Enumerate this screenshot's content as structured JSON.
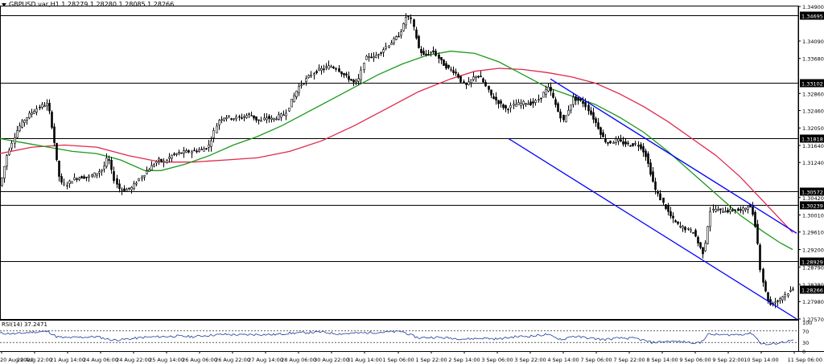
{
  "header": {
    "symbol_line": "GBPUSD.var,H1 1.28279 1.28280 1.28085 1.28266"
  },
  "rsi": {
    "label": "RSI(14) 37.2471",
    "levels": [
      "100",
      "70",
      "30",
      "0"
    ]
  },
  "colors": {
    "candle": "#000000",
    "ma_fast": "#1a9a1a",
    "ma_slow": "#e0294b",
    "channel": "#0000ff",
    "level_line": "#000000",
    "rsi_line": "#1e3c9a"
  },
  "chart_data": {
    "type": "candlestick",
    "symbol": "GBPUSD.var",
    "timeframe": "H1",
    "ohlc_last": {
      "open": 1.28279,
      "high": 1.2828,
      "low": 1.28085,
      "close": 1.28266
    },
    "ylim": [
      1.2757,
      1.349
    ],
    "y_ticks": [
      "1.34900",
      "1.34090",
      "1.33680",
      "1.32860",
      "1.32460",
      "1.32050",
      "1.31640",
      "1.31240",
      "1.30420",
      "1.30010",
      "1.29610",
      "1.29200",
      "1.28790",
      "1.28380",
      "1.27980",
      "1.27570"
    ],
    "x_ticks": [
      "20 Aug 2020",
      "20 Aug 22:00",
      "21 Aug 14:00",
      "24 Aug 06:00",
      "24 Aug 22:00",
      "25 Aug 14:00",
      "26 Aug 06:00",
      "26 Aug 22:00",
      "27 Aug 14:00",
      "28 Aug 06:00",
      "30 Aug 22:00",
      "31 Aug 14:00",
      "1 Sep 06:00",
      "1 Sep 22:00",
      "2 Sep 14:00",
      "3 Sep 06:00",
      "3 Sep 22:00",
      "4 Sep 14:00",
      "7 Sep 06:00",
      "7 Sep 22:00",
      "8 Sep 14:00",
      "9 Sep 06:00",
      "9 Sep 22:00",
      "10 Sep 14:00",
      "11 Sep 06:00"
    ],
    "horizontal_levels": [
      "1.34695",
      "1.33102",
      "1.31818",
      "1.30572",
      "1.30239",
      "1.28929"
    ],
    "current_price": "1.28266",
    "price_path": [
      [
        0,
        1.307
      ],
      [
        8,
        1.314
      ],
      [
        15,
        1.3175
      ],
      [
        22,
        1.3205
      ],
      [
        30,
        1.3225
      ],
      [
        38,
        1.324
      ],
      [
        45,
        1.325
      ],
      [
        52,
        1.3258
      ],
      [
        58,
        1.326
      ],
      [
        62,
        1.3235
      ],
      [
        68,
        1.316
      ],
      [
        72,
        1.31
      ],
      [
        76,
        1.3075
      ],
      [
        82,
        1.3072
      ],
      [
        90,
        1.3085
      ],
      [
        100,
        1.309
      ],
      [
        110,
        1.309
      ],
      [
        120,
        1.31
      ],
      [
        128,
        1.311
      ],
      [
        134,
        1.314
      ],
      [
        140,
        1.309
      ],
      [
        148,
        1.3062
      ],
      [
        156,
        1.306
      ],
      [
        164,
        1.3065
      ],
      [
        172,
        1.3085
      ],
      [
        180,
        1.31
      ],
      [
        188,
        1.3115
      ],
      [
        196,
        1.313
      ],
      [
        204,
        1.3125
      ],
      [
        212,
        1.314
      ],
      [
        220,
        1.3145
      ],
      [
        228,
        1.3148
      ],
      [
        236,
        1.315
      ],
      [
        244,
        1.3152
      ],
      [
        252,
        1.3155
      ],
      [
        260,
        1.3165
      ],
      [
        266,
        1.32
      ],
      [
        272,
        1.3225
      ],
      [
        280,
        1.3232
      ],
      [
        290,
        1.3228
      ],
      [
        300,
        1.323
      ],
      [
        310,
        1.3238
      ],
      [
        318,
        1.3225
      ],
      [
        324,
        1.322
      ],
      [
        330,
        1.323
      ],
      [
        338,
        1.3225
      ],
      [
        346,
        1.3232
      ],
      [
        354,
        1.3238
      ],
      [
        362,
        1.327
      ],
      [
        370,
        1.33
      ],
      [
        378,
        1.3315
      ],
      [
        386,
        1.333
      ],
      [
        394,
        1.334
      ],
      [
        402,
        1.3345
      ],
      [
        410,
        1.335
      ],
      [
        418,
        1.3345
      ],
      [
        426,
        1.333
      ],
      [
        434,
        1.332
      ],
      [
        440,
        1.331
      ],
      [
        446,
        1.332
      ],
      [
        452,
        1.3365
      ],
      [
        458,
        1.3375
      ],
      [
        464,
        1.337
      ],
      [
        470,
        1.338
      ],
      [
        476,
        1.339
      ],
      [
        482,
        1.34
      ],
      [
        488,
        1.341
      ],
      [
        494,
        1.342
      ],
      [
        500,
        1.344
      ],
      [
        505,
        1.347
      ],
      [
        510,
        1.346
      ],
      [
        515,
        1.343
      ],
      [
        520,
        1.339
      ],
      [
        526,
        1.3375
      ],
      [
        532,
        1.338
      ],
      [
        538,
        1.3385
      ],
      [
        544,
        1.337
      ],
      [
        550,
        1.3355
      ],
      [
        556,
        1.3345
      ],
      [
        562,
        1.334
      ],
      [
        568,
        1.333
      ],
      [
        574,
        1.331
      ],
      [
        580,
        1.3305
      ],
      [
        586,
        1.332
      ],
      [
        592,
        1.333
      ],
      [
        598,
        1.332
      ],
      [
        604,
        1.33
      ],
      [
        610,
        1.328
      ],
      [
        616,
        1.327
      ],
      [
        622,
        1.326
      ],
      [
        628,
        1.325
      ],
      [
        634,
        1.3255
      ],
      [
        640,
        1.326
      ],
      [
        646,
        1.3262
      ],
      [
        652,
        1.3265
      ],
      [
        658,
        1.3262
      ],
      [
        664,
        1.3265
      ],
      [
        670,
        1.3275
      ],
      [
        676,
        1.329
      ],
      [
        682,
        1.33
      ],
      [
        688,
        1.327
      ],
      [
        694,
        1.324
      ],
      [
        700,
        1.322
      ],
      [
        706,
        1.325
      ],
      [
        712,
        1.3275
      ],
      [
        718,
        1.327
      ],
      [
        724,
        1.3265
      ],
      [
        730,
        1.325
      ],
      [
        736,
        1.323
      ],
      [
        742,
        1.321
      ],
      [
        748,
        1.3185
      ],
      [
        754,
        1.317
      ],
      [
        760,
        1.3172
      ],
      [
        766,
        1.3178
      ],
      [
        772,
        1.317
      ],
      [
        778,
        1.3168
      ],
      [
        784,
        1.3165
      ],
      [
        790,
        1.3168
      ],
      [
        796,
        1.316
      ],
      [
        802,
        1.314
      ],
      [
        808,
        1.31
      ],
      [
        814,
        1.306
      ],
      [
        820,
        1.304
      ],
      [
        826,
        1.302
      ],
      [
        832,
        1.3
      ],
      [
        838,
        1.2985
      ],
      [
        844,
        1.2975
      ],
      [
        850,
        1.297
      ],
      [
        856,
        1.2965
      ],
      [
        862,
        1.296
      ],
      [
        868,
        1.293
      ],
      [
        874,
        1.291
      ],
      [
        878,
        1.296
      ],
      [
        882,
        1.301
      ],
      [
        888,
        1.3015
      ],
      [
        894,
        1.301
      ],
      [
        900,
        1.3012
      ],
      [
        906,
        1.301
      ],
      [
        912,
        1.3015
      ],
      [
        918,
        1.301
      ],
      [
        924,
        1.3015
      ],
      [
        930,
        1.3025
      ],
      [
        936,
        1.3
      ],
      [
        940,
        1.296
      ],
      [
        944,
        1.288
      ],
      [
        948,
        1.284
      ],
      [
        952,
        1.281
      ],
      [
        956,
        1.279
      ],
      [
        960,
        1.2795
      ],
      [
        966,
        1.28
      ],
      [
        972,
        1.281
      ],
      [
        978,
        1.2818
      ],
      [
        984,
        1.2826
      ]
    ],
    "ma_fast": [
      [
        0,
        1.318
      ],
      [
        30,
        1.317
      ],
      [
        60,
        1.316
      ],
      [
        90,
        1.315
      ],
      [
        120,
        1.3145
      ],
      [
        150,
        1.313
      ],
      [
        180,
        1.3105
      ],
      [
        200,
        1.3105
      ],
      [
        230,
        1.312
      ],
      [
        260,
        1.314
      ],
      [
        290,
        1.3165
      ],
      [
        320,
        1.3185
      ],
      [
        350,
        1.321
      ],
      [
        380,
        1.324
      ],
      [
        410,
        1.327
      ],
      [
        440,
        1.33
      ],
      [
        470,
        1.333
      ],
      [
        500,
        1.3355
      ],
      [
        530,
        1.3375
      ],
      [
        560,
        1.3385
      ],
      [
        590,
        1.338
      ],
      [
        620,
        1.336
      ],
      [
        650,
        1.333
      ],
      [
        680,
        1.33
      ],
      [
        710,
        1.328
      ],
      [
        740,
        1.326
      ],
      [
        770,
        1.323
      ],
      [
        800,
        1.3195
      ],
      [
        830,
        1.315
      ],
      [
        860,
        1.31
      ],
      [
        890,
        1.305
      ],
      [
        920,
        1.3
      ],
      [
        950,
        1.296
      ],
      [
        970,
        1.2935
      ],
      [
        985,
        1.292
      ]
    ],
    "ma_slow": [
      [
        0,
        1.3145
      ],
      [
        40,
        1.316
      ],
      [
        80,
        1.3165
      ],
      [
        120,
        1.316
      ],
      [
        160,
        1.314
      ],
      [
        200,
        1.3125
      ],
      [
        240,
        1.3125
      ],
      [
        280,
        1.313
      ],
      [
        320,
        1.3135
      ],
      [
        360,
        1.315
      ],
      [
        400,
        1.3175
      ],
      [
        440,
        1.321
      ],
      [
        480,
        1.325
      ],
      [
        520,
        1.329
      ],
      [
        560,
        1.332
      ],
      [
        590,
        1.3338
      ],
      [
        620,
        1.3345
      ],
      [
        650,
        1.3342
      ],
      [
        680,
        1.3335
      ],
      [
        710,
        1.3325
      ],
      [
        740,
        1.331
      ],
      [
        770,
        1.3285
      ],
      [
        800,
        1.3255
      ],
      [
        830,
        1.322
      ],
      [
        860,
        1.318
      ],
      [
        890,
        1.314
      ],
      [
        920,
        1.309
      ],
      [
        950,
        1.303
      ],
      [
        970,
        1.299
      ],
      [
        985,
        1.296
      ]
    ],
    "channel_upper": [
      [
        684,
        1.332
      ],
      [
        990,
        1.2958
      ]
    ],
    "channel_lower": [
      [
        632,
        1.318
      ],
      [
        990,
        1.2757
      ]
    ],
    "rsi_values": [
      [
        0,
        62
      ],
      [
        20,
        60
      ],
      [
        40,
        66
      ],
      [
        60,
        68
      ],
      [
        70,
        50
      ],
      [
        80,
        46
      ],
      [
        100,
        48
      ],
      [
        120,
        50
      ],
      [
        140,
        38
      ],
      [
        160,
        42
      ],
      [
        180,
        48
      ],
      [
        200,
        50
      ],
      [
        220,
        52
      ],
      [
        240,
        50
      ],
      [
        260,
        55
      ],
      [
        280,
        58
      ],
      [
        300,
        56
      ],
      [
        320,
        58
      ],
      [
        340,
        57
      ],
      [
        360,
        62
      ],
      [
        380,
        64
      ],
      [
        400,
        66
      ],
      [
        420,
        60
      ],
      [
        440,
        62
      ],
      [
        460,
        64
      ],
      [
        480,
        66
      ],
      [
        500,
        68
      ],
      [
        510,
        56
      ],
      [
        520,
        46
      ],
      [
        540,
        48
      ],
      [
        560,
        45
      ],
      [
        580,
        42
      ],
      [
        600,
        45
      ],
      [
        620,
        42
      ],
      [
        640,
        50
      ],
      [
        660,
        52
      ],
      [
        680,
        58
      ],
      [
        690,
        46
      ],
      [
        700,
        40
      ],
      [
        710,
        52
      ],
      [
        730,
        46
      ],
      [
        750,
        40
      ],
      [
        770,
        45
      ],
      [
        790,
        44
      ],
      [
        810,
        30
      ],
      [
        830,
        34
      ],
      [
        850,
        32
      ],
      [
        870,
        28
      ],
      [
        880,
        58
      ],
      [
        900,
        56
      ],
      [
        920,
        58
      ],
      [
        935,
        62
      ],
      [
        945,
        28
      ],
      [
        955,
        22
      ],
      [
        970,
        30
      ],
      [
        985,
        37
      ]
    ]
  }
}
